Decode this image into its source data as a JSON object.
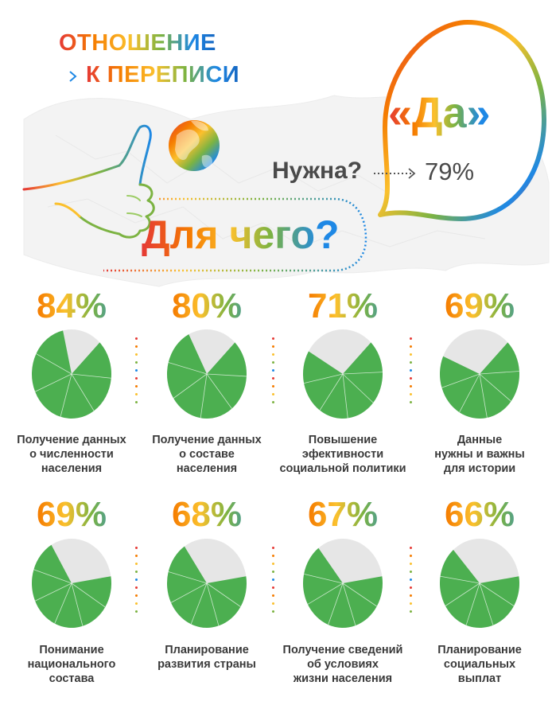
{
  "header": {
    "title_line1": "ОТНОШЕНИЕ",
    "title_line2": "К ПЕРЕПИСИ",
    "answer": "«Да»",
    "question": "Нужна?",
    "yes_share": "79%",
    "subtitle": "Для чего?"
  },
  "icons": [
    "globe-icon",
    "pointing-hand-icon",
    "speech-bubble-icon",
    "dotted-arrow-icon"
  ],
  "colors": {
    "pie_filled": "#4caf50",
    "pie_empty": "#e6e6e6",
    "gradient": [
      "#e53935",
      "#f57c00",
      "#fbc02d",
      "#7cb342",
      "#1e88e5"
    ]
  },
  "chart_data": {
    "type": "pie",
    "unit": "%",
    "items": [
      {
        "label": "Получение данных\nо численности\nнаселения",
        "value": 84,
        "display": "84%"
      },
      {
        "label": "Получение данных\nо составе\nнаселения",
        "value": 80,
        "display": "80%"
      },
      {
        "label": "Повышение\nэфективности\nсоциальной политики",
        "value": 71,
        "display": "71%"
      },
      {
        "label": "Данные\nнужны и важны\nдля истории",
        "value": 69,
        "display": "69%"
      },
      {
        "label": "Понимание\nнационального\nсостава",
        "value": 69,
        "display": "69%"
      },
      {
        "label": "Планирование\nразвития страны",
        "value": 68,
        "display": "68%"
      },
      {
        "label": "Получение сведений\nоб условиях\nжизни населения",
        "value": 67,
        "display": "67%"
      },
      {
        "label": "Планирование\nсоциальных\nвыплат",
        "value": 66,
        "display": "66%"
      }
    ]
  }
}
